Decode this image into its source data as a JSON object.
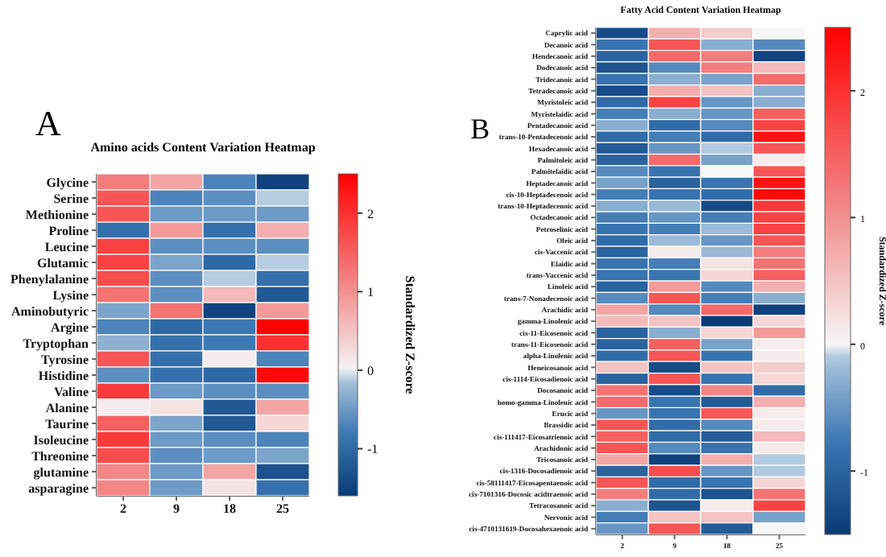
{
  "chart_data": [
    {
      "type": "heatmap",
      "title": "Amino acids Content Variation Heatmap",
      "annotations": [
        "A"
      ],
      "clabel": "Standardized Z-score",
      "clim": [
        -1.6,
        2.5
      ],
      "cticks": [
        -1,
        0,
        1,
        2
      ],
      "categories": [
        "2",
        "9",
        "18",
        "25"
      ],
      "y_categories": [
        "Glycine",
        "Serine",
        "Methionine",
        "Proline",
        "Leucine",
        "Glutamic",
        "Phenylalanine",
        "Lysine",
        "Aminobutyric",
        "Argine",
        "Tryptophan",
        "Tyrosine",
        "Histidine",
        "Valine",
        "Alanine",
        "Taurine",
        "Isoleucine",
        "Threonine",
        "glutamine",
        "asparagine"
      ],
      "cells": [
        [
          1.2,
          0.8,
          -0.7,
          -1.5
        ],
        [
          1.6,
          -0.7,
          -0.6,
          -0.1
        ],
        [
          1.6,
          -0.5,
          -0.5,
          -0.5
        ],
        [
          -0.9,
          0.9,
          -0.9,
          0.7
        ],
        [
          1.8,
          -0.6,
          -0.6,
          -0.6
        ],
        [
          1.8,
          -0.4,
          -1.0,
          -0.1
        ],
        [
          1.7,
          -0.6,
          -0.1,
          -0.9
        ],
        [
          1.3,
          -0.6,
          0.6,
          -1.2
        ],
        [
          -0.4,
          1.3,
          -1.5,
          0.9
        ],
        [
          -0.7,
          -1.0,
          -0.8,
          2.5
        ],
        [
          -0.3,
          -0.9,
          -0.8,
          2.0
        ],
        [
          1.6,
          -0.9,
          0.1,
          -0.7
        ],
        [
          -0.6,
          -0.9,
          -1.0,
          2.4
        ],
        [
          1.9,
          -0.5,
          -0.6,
          -0.6
        ],
        [
          0.1,
          0.2,
          -1.2,
          0.8
        ],
        [
          1.5,
          -0.4,
          -1.2,
          0.3
        ],
        [
          1.9,
          -0.5,
          -0.6,
          -0.7
        ],
        [
          1.7,
          -0.6,
          -0.5,
          -0.4
        ],
        [
          1.1,
          -0.5,
          0.8,
          -1.3
        ],
        [
          1.1,
          -0.5,
          0.2,
          -0.9
        ]
      ]
    },
    {
      "type": "heatmap",
      "title": "Fatty Acid Content Variation Heatmap",
      "annotations": [
        "B"
      ],
      "clabel": "Standardized Z-score",
      "clim": [
        -1.5,
        2.5
      ],
      "cticks": [
        -1,
        0,
        1,
        2
      ],
      "categories": [
        "2",
        "9",
        "18",
        "25"
      ],
      "y_categories": [
        "Caprylic acid",
        "Decanoic acid",
        "Hendecanoic acid",
        "Dodecanoic acid",
        "Tridecanoic acid",
        "Tetradecanoic acid",
        "Myristoleic acid",
        "Myristelaidic acid",
        "Pentadecanoic acid",
        "trans-10-Pentadecenoic acid",
        "Hexadecanoic acid",
        "Palmitoleic acid",
        "Palmitelaidic acid",
        "Heptadecanoic acid",
        "cis-10-Heptadecenoic acid",
        "trans-10-Heptadecenoic acid",
        "Octadecanoic acid",
        "Petroselinic acid",
        "Oleic acid",
        "cis-Vaccenic acid",
        "Elaidic acid",
        "trans-Vaccenic acid",
        "Linoleic acid",
        "trans-7-Nonadecenoic acid",
        "Arachidic acid",
        "gamma-Linolenic acid",
        "cis-11-Eicosenoic acid",
        "trans-11-Eicosenoic acid",
        "alpha-Linolenic acid",
        "Heneicosanoic acid",
        "cis-1114-Eicosadienoic acid",
        "Docosanoic acid",
        "homo-gamma-Linolenic acid",
        "Erucic acid",
        "Brassidic acid",
        "cis-111417-Eicosatrienoic acid",
        "Arachidonic acid",
        "Tricosanoic acid",
        "cis-1316-Docosadienoic acid",
        "cis-58111417-Eicosapentaenoic acid",
        "cis-7101316-Docosic acidtraenoic acid",
        "Tetracosanoic acid",
        "Nervonic acid",
        "cis-4710131619-Docosahexaenoic acid"
      ],
      "cells": [
        [
          -1.3,
          0.7,
          0.4,
          0.0
        ],
        [
          -0.8,
          1.6,
          -0.3,
          -0.6
        ],
        [
          -1.0,
          1.4,
          1.2,
          -1.4
        ],
        [
          -1.2,
          -0.6,
          1.2,
          0.6
        ],
        [
          -0.8,
          -0.3,
          -0.4,
          1.4
        ],
        [
          -1.3,
          0.7,
          0.5,
          -0.3
        ],
        [
          -0.9,
          1.8,
          -0.5,
          -0.3
        ],
        [
          -0.7,
          -0.3,
          -0.5,
          1.5
        ],
        [
          -0.3,
          -0.9,
          -0.6,
          1.8
        ],
        [
          -0.9,
          -0.7,
          -0.9,
          2.3
        ],
        [
          -1.1,
          -0.5,
          -0.1,
          1.6
        ],
        [
          -1.0,
          1.4,
          -0.4,
          0.1
        ],
        [
          -0.6,
          -0.8,
          0.0,
          1.6
        ],
        [
          -0.4,
          -1.0,
          -0.8,
          2.3
        ],
        [
          -0.7,
          -0.8,
          -0.9,
          2.4
        ],
        [
          -0.3,
          -0.2,
          -1.3,
          1.9
        ],
        [
          -0.7,
          -0.5,
          -0.7,
          1.8
        ],
        [
          -0.8,
          -0.7,
          -0.2,
          1.8
        ],
        [
          -0.9,
          -0.2,
          -0.5,
          1.6
        ],
        [
          -1.0,
          0.1,
          -0.2,
          1.2
        ],
        [
          -0.8,
          -0.7,
          0.2,
          1.3
        ],
        [
          -0.8,
          -0.8,
          0.3,
          1.5
        ],
        [
          -1.0,
          0.9,
          -0.6,
          0.7
        ],
        [
          -0.6,
          1.6,
          -0.7,
          -0.3
        ],
        [
          0.8,
          -0.6,
          1.4,
          -1.4
        ],
        [
          0.6,
          0.5,
          -1.5,
          0.3
        ],
        [
          -1.0,
          -0.3,
          0.3,
          0.9
        ],
        [
          -1.0,
          1.5,
          -0.4,
          0.1
        ],
        [
          -0.9,
          1.6,
          -0.8,
          0.1
        ],
        [
          0.5,
          -1.3,
          0.5,
          0.4
        ],
        [
          -1.0,
          1.6,
          -0.8,
          0.3
        ],
        [
          1.3,
          -1.3,
          1.1,
          -0.9
        ],
        [
          1.4,
          -0.8,
          -1.1,
          0.7
        ],
        [
          -0.5,
          -0.8,
          1.6,
          0.1
        ],
        [
          1.6,
          -0.9,
          -0.6,
          0.1
        ],
        [
          1.5,
          -0.9,
          -1.1,
          0.6
        ],
        [
          1.6,
          -0.6,
          -0.8,
          0.1
        ],
        [
          0.8,
          -1.4,
          0.7,
          -0.1
        ],
        [
          -1.0,
          1.7,
          -0.5,
          -0.1
        ],
        [
          1.6,
          -0.9,
          -0.8,
          0.3
        ],
        [
          1.2,
          -0.9,
          -1.2,
          1.3
        ],
        [
          -0.3,
          -1.2,
          0.1,
          1.8
        ],
        [
          -0.7,
          0.5,
          0.5,
          -0.4
        ],
        [
          -0.5,
          1.6,
          -1.1,
          0.0
        ]
      ]
    }
  ]
}
